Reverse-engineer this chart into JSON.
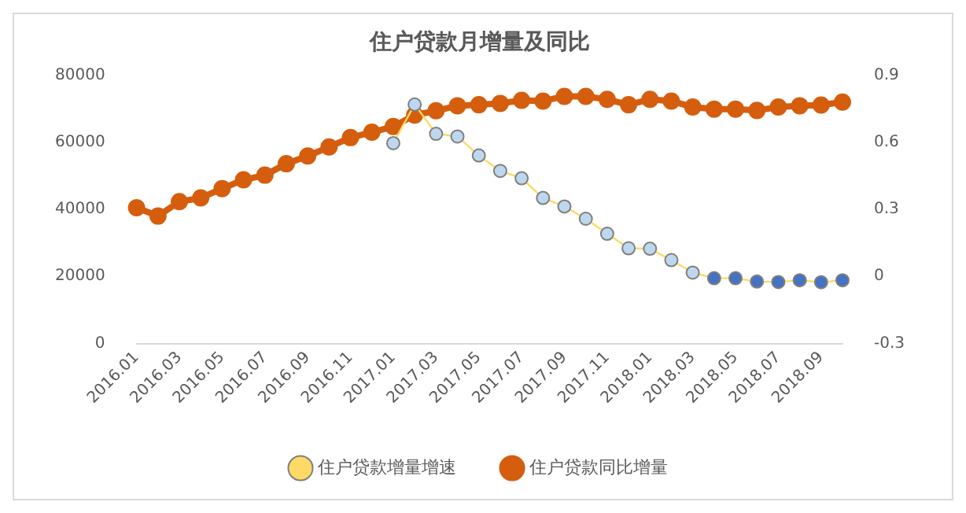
{
  "chart_data": {
    "type": "line",
    "title": "住户贷款月增量及同比",
    "categories": [
      "2016.01",
      null,
      "2016.03",
      null,
      "2016.05",
      null,
      "2016.07",
      null,
      "2016.09",
      null,
      "2016.11",
      null,
      "2017.01",
      null,
      "2017.03",
      null,
      "2017.05",
      null,
      "2017.07",
      null,
      "2017.09",
      null,
      "2017.11",
      null,
      "2018.01",
      null,
      "2018.03",
      null,
      "2018.05",
      null,
      "2018.07",
      null,
      "2018.09",
      null
    ],
    "series": [
      {
        "name": "住户贷款同比增量",
        "color": "#d55e0e",
        "values": [
          40500,
          38000,
          42300,
          43400,
          46200,
          48800,
          50200,
          53600,
          55900,
          58600,
          61400,
          63000,
          64700,
          68100,
          69400,
          70900,
          71200,
          71600,
          72500,
          72300,
          73700,
          73700,
          72800,
          71200,
          72800,
          72300,
          70500,
          69900,
          69900,
          69500,
          70500,
          70900,
          71100,
          72000
        ]
      },
      {
        "name": "住户贷款增量增速",
        "color": "#ffd966",
        "axis": "y2",
        "colors": [
          null,
          null,
          null,
          null,
          null,
          null,
          null,
          null,
          null,
          null,
          null,
          null,
          "#bdd7ee",
          "#bdd7ee",
          "#bdd7ee",
          "#bdd7ee",
          "#bdd7ee",
          "#bdd7ee",
          "#bdd7ee",
          "#bdd7ee",
          "#bdd7ee",
          "#bdd7ee",
          "#bdd7ee",
          "#bdd7ee",
          "#bdd7ee",
          "#bdd7ee",
          "#bdd7ee",
          "#4472c4",
          "#4472c4",
          "#4472c4",
          "#4472c4",
          "#4472c4",
          "#4472c4",
          "#4472c4"
        ],
        "values": [
          null,
          null,
          null,
          null,
          null,
          null,
          null,
          null,
          null,
          null,
          null,
          null,
          0.596,
          0.769,
          0.638,
          0.626,
          0.541,
          0.472,
          0.439,
          0.351,
          0.313,
          0.258,
          0.191,
          0.126,
          0.124,
          0.073,
          0.017,
          -0.008,
          -0.008,
          -0.023,
          -0.025,
          -0.017,
          -0.026,
          -0.017
        ]
      }
    ],
    "ylim": [
      0,
      80000
    ],
    "yticks": [
      0,
      20000,
      40000,
      60000,
      80000
    ],
    "y2lim": [
      -0.3,
      0.9
    ],
    "y2ticks": [
      -0.3,
      0,
      0.3,
      0.6,
      0.9
    ],
    "grid": false,
    "legend": "bottom",
    "marker": "circle"
  }
}
